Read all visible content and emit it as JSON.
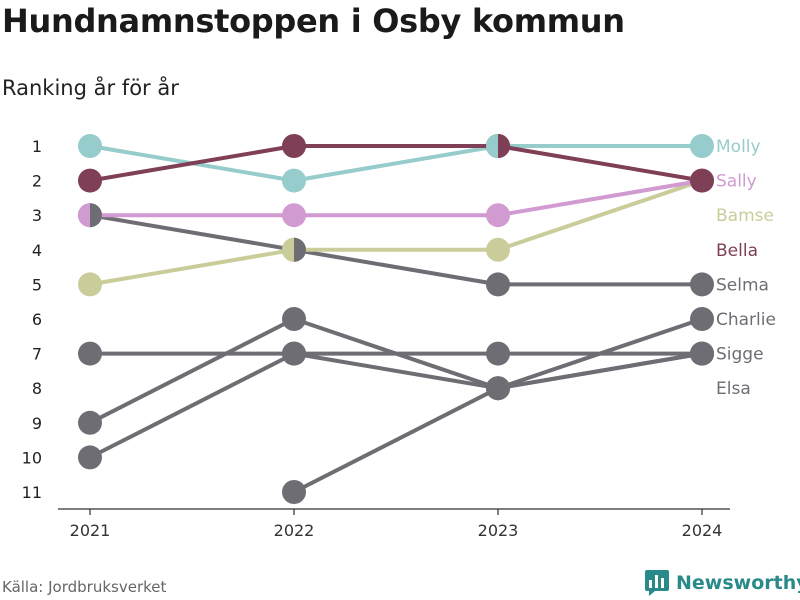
{
  "header": {
    "title": "Hundnamnstoppen i Osby kommun",
    "subtitle": "Ranking år för år"
  },
  "footer": {
    "source": "Källa: Jordbruksverket",
    "brand": "Newsworthy"
  },
  "colors": {
    "Molly": "#96CCCB",
    "Bella": "#7F3F57",
    "Sally": "#D19AD1",
    "Bamse": "#CACD9A",
    "grey": "#6E6D74",
    "brand": "#2A8A8A"
  },
  "chart_data": {
    "type": "line",
    "title": "Hundnamnstoppen i Osby kommun",
    "subtitle": "Ranking år för år",
    "categories": [
      "2021",
      "2022",
      "2023",
      "2024"
    ],
    "y_ticks": [
      1,
      2,
      3,
      4,
      5,
      6,
      7,
      8,
      9,
      10,
      11
    ],
    "ylim": [
      1,
      11
    ],
    "y_reversed": true,
    "series": [
      {
        "name": "Charlie",
        "values": [
          9,
          6,
          8,
          6
        ],
        "color": "#6E6D74"
      },
      {
        "name": "Sigge",
        "values": [
          7,
          7,
          7,
          7
        ],
        "color": "#6E6D74"
      },
      {
        "name": "Elsa",
        "values": [
          10,
          7,
          8,
          7
        ],
        "color": "#6E6D74"
      },
      {
        "name": "",
        "values": [
          null,
          11,
          8,
          7
        ],
        "color": "#6E6D74"
      },
      {
        "name": "Selma",
        "values": [
          3,
          4,
          5,
          5
        ],
        "color": "#6E6D74"
      },
      {
        "name": "Bamse",
        "values": [
          5,
          4,
          4,
          2
        ],
        "color": "#CACD9A"
      },
      {
        "name": "Sally",
        "values": [
          3,
          3,
          3,
          2
        ],
        "color": "#D19AD1"
      },
      {
        "name": "Molly",
        "values": [
          1,
          2,
          1,
          1
        ],
        "color": "#96CCCB"
      },
      {
        "name": "Bella",
        "values": [
          2,
          1,
          1,
          2
        ],
        "color": "#7F3F57"
      }
    ],
    "end_labels": [
      {
        "name": "Molly",
        "rank": 1,
        "color": "#96CCCB"
      },
      {
        "name": "Sally",
        "rank": 2,
        "color": "#D19AD1"
      },
      {
        "name": "Bamse",
        "rank": 3,
        "color": "#CACD9A"
      },
      {
        "name": "Bella",
        "rank": 4,
        "color": "#7F3F57"
      },
      {
        "name": "Selma",
        "rank": 5,
        "color": "#6E6D74"
      },
      {
        "name": "Charlie",
        "rank": 6,
        "color": "#6E6D74"
      },
      {
        "name": "Sigge",
        "rank": 7,
        "color": "#6E6D74"
      },
      {
        "name": "Elsa",
        "rank": 8,
        "color": "#6E6D74"
      }
    ],
    "split_markers": [
      {
        "category": "2021",
        "rank": 3,
        "left": "#D19AD1",
        "right": "#6E6D74"
      },
      {
        "category": "2022",
        "rank": 4,
        "left": "#CACD9A",
        "right": "#6E6D74"
      },
      {
        "category": "2023",
        "rank": 1,
        "left": "#96CCCB",
        "right": "#7F3F57"
      }
    ],
    "grid": false,
    "legend": "right-end labels"
  }
}
